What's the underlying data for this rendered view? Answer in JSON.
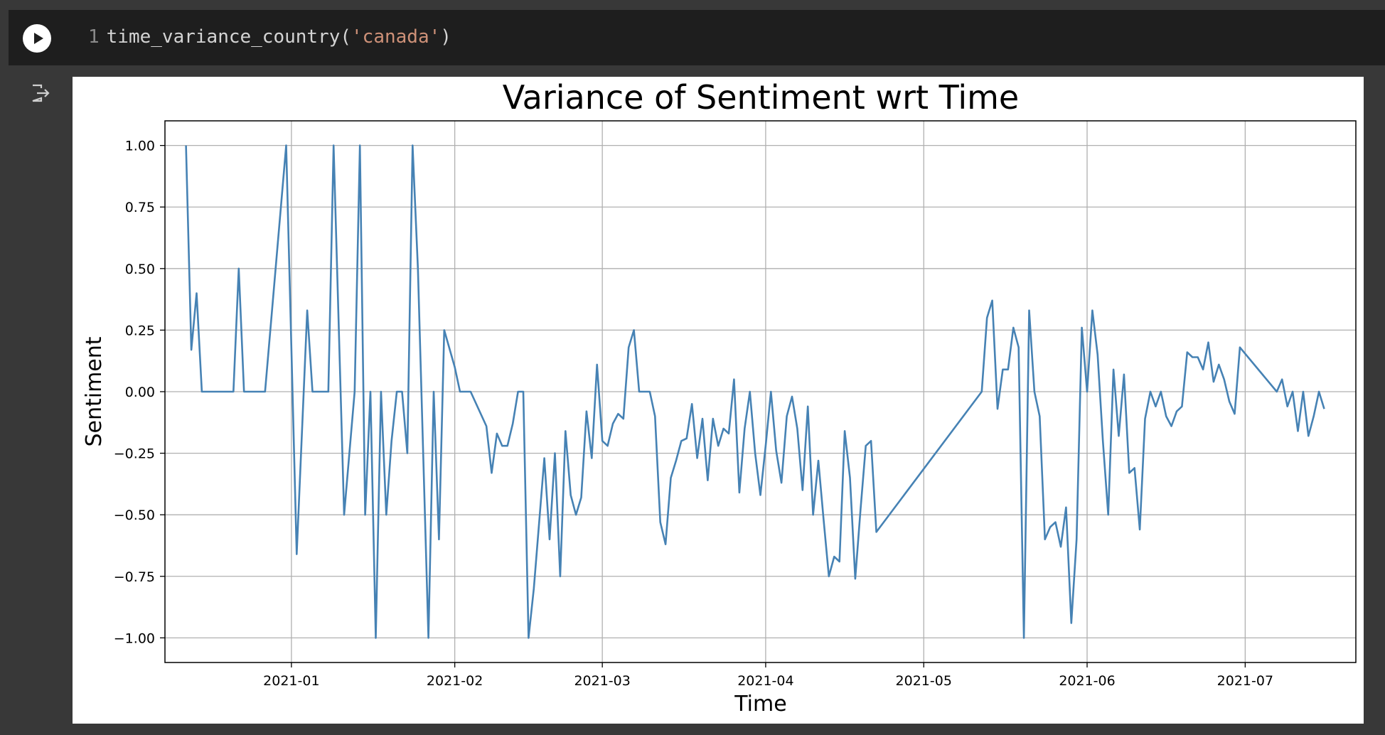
{
  "cell": {
    "line_number": "1",
    "code_func": "time_variance_country(",
    "code_arg": "'canada'",
    "code_close": ")",
    "run_icon": "play-icon",
    "output_icon": "output-exit-icon"
  },
  "colors": {
    "line": "#4682b4",
    "grid": "#b0b0b0"
  },
  "chart_data": {
    "type": "line",
    "title": "Variance of Sentiment wrt Time",
    "xlabel": "Time",
    "ylabel": "Sentiment",
    "x_ticks": [
      "2021-01",
      "2021-02",
      "2021-03",
      "2021-04",
      "2021-05",
      "2021-06",
      "2021-07"
    ],
    "y_ticks": [
      "1.00",
      "0.75",
      "0.50",
      "0.25",
      "0.00",
      "−0.25",
      "−0.50",
      "−0.75",
      "−1.00"
    ],
    "xlim": [
      "2020-12-08",
      "2021-07-22"
    ],
    "ylim": [
      -1.1,
      1.1
    ],
    "grid": true,
    "series": [
      {
        "points": [
          [
            "2020-12-12",
            1.0
          ],
          [
            "2020-12-13",
            0.17
          ],
          [
            "2020-12-14",
            0.4
          ],
          [
            "2020-12-15",
            0.0
          ],
          [
            "2020-12-21",
            0.0
          ],
          [
            "2020-12-22",
            0.5
          ],
          [
            "2020-12-23",
            0.0
          ],
          [
            "2020-12-27",
            0.0
          ],
          [
            "2020-12-31",
            1.0
          ],
          [
            "2021-01-02",
            -0.66
          ],
          [
            "2021-01-04",
            0.33
          ],
          [
            "2021-01-05",
            0.0
          ],
          [
            "2021-01-08",
            0.0
          ],
          [
            "2021-01-09",
            1.0
          ],
          [
            "2021-01-11",
            -0.5
          ],
          [
            "2021-01-13",
            0.0
          ],
          [
            "2021-01-14",
            1.0
          ],
          [
            "2021-01-15",
            -0.5
          ],
          [
            "2021-01-16",
            0.0
          ],
          [
            "2021-01-17",
            -1.0
          ],
          [
            "2021-01-18",
            0.0
          ],
          [
            "2021-01-19",
            -0.5
          ],
          [
            "2021-01-20",
            -0.2
          ],
          [
            "2021-01-21",
            0.0
          ],
          [
            "2021-01-22",
            0.0
          ],
          [
            "2021-01-23",
            -0.25
          ],
          [
            "2021-01-24",
            1.0
          ],
          [
            "2021-01-25",
            0.5
          ],
          [
            "2021-01-27",
            -1.0
          ],
          [
            "2021-01-28",
            0.0
          ],
          [
            "2021-01-29",
            -0.6
          ],
          [
            "2021-01-30",
            0.25
          ],
          [
            "2021-02-01",
            0.1
          ],
          [
            "2021-02-02",
            0.0
          ],
          [
            "2021-02-04",
            0.0
          ],
          [
            "2021-02-07",
            -0.14
          ],
          [
            "2021-02-08",
            -0.33
          ],
          [
            "2021-02-09",
            -0.17
          ],
          [
            "2021-02-10",
            -0.22
          ],
          [
            "2021-02-11",
            -0.22
          ],
          [
            "2021-02-12",
            -0.13
          ],
          [
            "2021-02-13",
            0.0
          ],
          [
            "2021-02-14",
            0.0
          ],
          [
            "2021-02-15",
            -1.0
          ],
          [
            "2021-02-16",
            -0.8
          ],
          [
            "2021-02-18",
            -0.27
          ],
          [
            "2021-02-19",
            -0.6
          ],
          [
            "2021-02-20",
            -0.25
          ],
          [
            "2021-02-21",
            -0.75
          ],
          [
            "2021-02-22",
            -0.16
          ],
          [
            "2021-02-23",
            -0.42
          ],
          [
            "2021-02-24",
            -0.5
          ],
          [
            "2021-02-25",
            -0.43
          ],
          [
            "2021-02-26",
            -0.08
          ],
          [
            "2021-02-27",
            -0.27
          ],
          [
            "2021-02-28",
            0.11
          ],
          [
            "2021-03-01",
            -0.2
          ],
          [
            "2021-03-02",
            -0.22
          ],
          [
            "2021-03-03",
            -0.13
          ],
          [
            "2021-03-04",
            -0.09
          ],
          [
            "2021-03-05",
            -0.11
          ],
          [
            "2021-03-06",
            0.18
          ],
          [
            "2021-03-07",
            0.25
          ],
          [
            "2021-03-08",
            0.0
          ],
          [
            "2021-03-10",
            0.0
          ],
          [
            "2021-03-11",
            -0.1
          ],
          [
            "2021-03-12",
            -0.53
          ],
          [
            "2021-03-13",
            -0.62
          ],
          [
            "2021-03-14",
            -0.35
          ],
          [
            "2021-03-15",
            -0.28
          ],
          [
            "2021-03-16",
            -0.2
          ],
          [
            "2021-03-17",
            -0.19
          ],
          [
            "2021-03-18",
            -0.05
          ],
          [
            "2021-03-19",
            -0.27
          ],
          [
            "2021-03-20",
            -0.11
          ],
          [
            "2021-03-21",
            -0.36
          ],
          [
            "2021-03-22",
            -0.11
          ],
          [
            "2021-03-23",
            -0.22
          ],
          [
            "2021-03-24",
            -0.15
          ],
          [
            "2021-03-25",
            -0.17
          ],
          [
            "2021-03-26",
            0.05
          ],
          [
            "2021-03-27",
            -0.41
          ],
          [
            "2021-03-28",
            -0.15
          ],
          [
            "2021-03-29",
            0.0
          ],
          [
            "2021-03-30",
            -0.25
          ],
          [
            "2021-03-31",
            -0.42
          ],
          [
            "2021-04-01",
            -0.22
          ],
          [
            "2021-04-02",
            0.0
          ],
          [
            "2021-04-03",
            -0.24
          ],
          [
            "2021-04-04",
            -0.37
          ],
          [
            "2021-04-05",
            -0.1
          ],
          [
            "2021-04-06",
            -0.02
          ],
          [
            "2021-04-07",
            -0.15
          ],
          [
            "2021-04-08",
            -0.4
          ],
          [
            "2021-04-09",
            -0.06
          ],
          [
            "2021-04-10",
            -0.5
          ],
          [
            "2021-04-11",
            -0.28
          ],
          [
            "2021-04-12",
            -0.52
          ],
          [
            "2021-04-13",
            -0.75
          ],
          [
            "2021-04-14",
            -0.67
          ],
          [
            "2021-04-15",
            -0.69
          ],
          [
            "2021-04-16",
            -0.16
          ],
          [
            "2021-04-17",
            -0.35
          ],
          [
            "2021-04-18",
            -0.76
          ],
          [
            "2021-04-19",
            -0.48
          ],
          [
            "2021-04-20",
            -0.22
          ],
          [
            "2021-04-21",
            -0.2
          ],
          [
            "2021-04-22",
            -0.57
          ],
          [
            "2021-05-12",
            0.0
          ],
          [
            "2021-05-13",
            0.3
          ],
          [
            "2021-05-14",
            0.37
          ],
          [
            "2021-05-15",
            -0.07
          ],
          [
            "2021-05-16",
            0.09
          ],
          [
            "2021-05-17",
            0.09
          ],
          [
            "2021-05-18",
            0.26
          ],
          [
            "2021-05-19",
            0.18
          ],
          [
            "2021-05-20",
            -1.0
          ],
          [
            "2021-05-21",
            0.33
          ],
          [
            "2021-05-22",
            0.0
          ],
          [
            "2021-05-23",
            -0.1
          ],
          [
            "2021-05-24",
            -0.6
          ],
          [
            "2021-05-25",
            -0.55
          ],
          [
            "2021-05-26",
            -0.53
          ],
          [
            "2021-05-27",
            -0.63
          ],
          [
            "2021-05-28",
            -0.47
          ],
          [
            "2021-05-29",
            -0.94
          ],
          [
            "2021-05-30",
            -0.6
          ],
          [
            "2021-05-31",
            0.26
          ],
          [
            "2021-06-01",
            0.0
          ],
          [
            "2021-06-02",
            0.33
          ],
          [
            "2021-06-03",
            0.15
          ],
          [
            "2021-06-04",
            -0.2
          ],
          [
            "2021-06-05",
            -0.5
          ],
          [
            "2021-06-06",
            0.09
          ],
          [
            "2021-06-07",
            -0.18
          ],
          [
            "2021-06-08",
            0.07
          ],
          [
            "2021-06-09",
            -0.33
          ],
          [
            "2021-06-10",
            -0.31
          ],
          [
            "2021-06-11",
            -0.56
          ],
          [
            "2021-06-12",
            -0.11
          ],
          [
            "2021-06-13",
            0.0
          ],
          [
            "2021-06-14",
            -0.06
          ],
          [
            "2021-06-15",
            0.0
          ],
          [
            "2021-06-16",
            -0.1
          ],
          [
            "2021-06-17",
            -0.14
          ],
          [
            "2021-06-18",
            -0.08
          ],
          [
            "2021-06-19",
            -0.06
          ],
          [
            "2021-06-20",
            0.16
          ],
          [
            "2021-06-21",
            0.14
          ],
          [
            "2021-06-22",
            0.14
          ],
          [
            "2021-06-23",
            0.09
          ],
          [
            "2021-06-24",
            0.2
          ],
          [
            "2021-06-25",
            0.04
          ],
          [
            "2021-06-26",
            0.11
          ],
          [
            "2021-06-27",
            0.05
          ],
          [
            "2021-06-28",
            -0.04
          ],
          [
            "2021-06-29",
            -0.09
          ],
          [
            "2021-06-30",
            0.18
          ],
          [
            "2021-07-07",
            0.0
          ],
          [
            "2021-07-08",
            0.05
          ],
          [
            "2021-07-09",
            -0.06
          ],
          [
            "2021-07-10",
            0.0
          ],
          [
            "2021-07-11",
            -0.16
          ],
          [
            "2021-07-12",
            0.0
          ],
          [
            "2021-07-13",
            -0.18
          ],
          [
            "2021-07-14",
            -0.1
          ],
          [
            "2021-07-15",
            0.0
          ],
          [
            "2021-07-16",
            -0.07
          ]
        ]
      }
    ]
  }
}
